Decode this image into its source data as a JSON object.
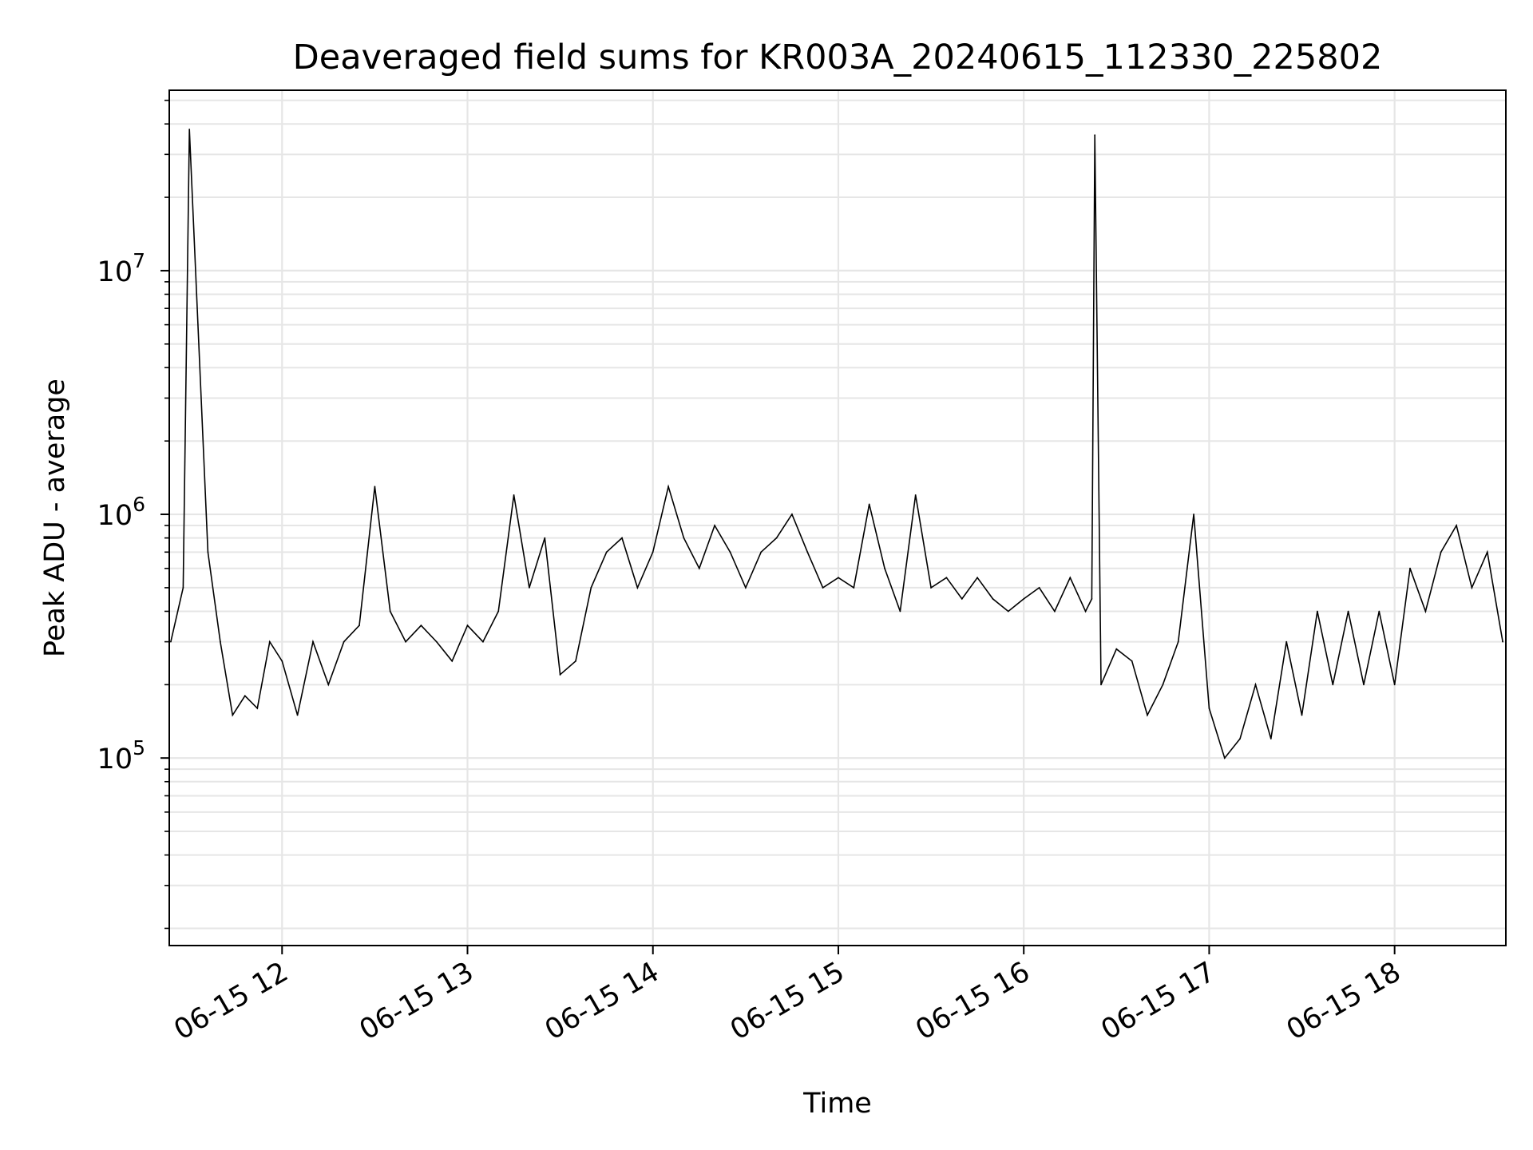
{
  "chart_data": {
    "type": "line",
    "title": "Deaveraged field sums for KR003A_20240615_112330_225802",
    "xlabel": "Time",
    "ylabel": "Peak ADU - average",
    "yscale": "log",
    "ylim": [
      17000,
      55000000
    ],
    "xlim": [
      "2024-06-15 11:23:30",
      "2024-06-15 18:36:00"
    ],
    "grid": "both",
    "line_color": "#000000",
    "grid_color": "#e6e6e6",
    "x_ticks": [
      {
        "value": "2024-06-15 12:00",
        "label": "06-15 12"
      },
      {
        "value": "2024-06-15 13:00",
        "label": "06-15 13"
      },
      {
        "value": "2024-06-15 14:00",
        "label": "06-15 14"
      },
      {
        "value": "2024-06-15 15:00",
        "label": "06-15 15"
      },
      {
        "value": "2024-06-15 16:00",
        "label": "06-15 16"
      },
      {
        "value": "2024-06-15 17:00",
        "label": "06-15 17"
      },
      {
        "value": "2024-06-15 18:00",
        "label": "06-15 18"
      }
    ],
    "y_ticks": [
      {
        "value": 100000,
        "base": "10",
        "exp": "5"
      },
      {
        "value": 1000000,
        "base": "10",
        "exp": "6"
      },
      {
        "value": 10000000,
        "base": "10",
        "exp": "7"
      }
    ],
    "series": [
      {
        "x": [
          "2024-06-15 11:24",
          "2024-06-15 11:28",
          "2024-06-15 11:30",
          "2024-06-15 11:36",
          "2024-06-15 11:40",
          "2024-06-15 11:44",
          "2024-06-15 11:48",
          "2024-06-15 11:52",
          "2024-06-15 11:56",
          "2024-06-15 12:00",
          "2024-06-15 12:05",
          "2024-06-15 12:10",
          "2024-06-15 12:15",
          "2024-06-15 12:20",
          "2024-06-15 12:25",
          "2024-06-15 12:30",
          "2024-06-15 12:35",
          "2024-06-15 12:40",
          "2024-06-15 12:45",
          "2024-06-15 12:50",
          "2024-06-15 12:55",
          "2024-06-15 13:00",
          "2024-06-15 13:05",
          "2024-06-15 13:10",
          "2024-06-15 13:15",
          "2024-06-15 13:20",
          "2024-06-15 13:25",
          "2024-06-15 13:30",
          "2024-06-15 13:35",
          "2024-06-15 13:40",
          "2024-06-15 13:45",
          "2024-06-15 13:50",
          "2024-06-15 13:55",
          "2024-06-15 14:00",
          "2024-06-15 14:05",
          "2024-06-15 14:10",
          "2024-06-15 14:15",
          "2024-06-15 14:20",
          "2024-06-15 14:25",
          "2024-06-15 14:30",
          "2024-06-15 14:35",
          "2024-06-15 14:40",
          "2024-06-15 14:45",
          "2024-06-15 14:50",
          "2024-06-15 14:55",
          "2024-06-15 15:00",
          "2024-06-15 15:05",
          "2024-06-15 15:10",
          "2024-06-15 15:15",
          "2024-06-15 15:20",
          "2024-06-15 15:25",
          "2024-06-15 15:30",
          "2024-06-15 15:35",
          "2024-06-15 15:40",
          "2024-06-15 15:45",
          "2024-06-15 15:50",
          "2024-06-15 15:55",
          "2024-06-15 16:00",
          "2024-06-15 16:05",
          "2024-06-15 16:10",
          "2024-06-15 16:15",
          "2024-06-15 16:20",
          "2024-06-15 16:22",
          "2024-06-15 16:23",
          "2024-06-15 16:25",
          "2024-06-15 16:30",
          "2024-06-15 16:35",
          "2024-06-15 16:40",
          "2024-06-15 16:45",
          "2024-06-15 16:50",
          "2024-06-15 16:55",
          "2024-06-15 17:00",
          "2024-06-15 17:05",
          "2024-06-15 17:10",
          "2024-06-15 17:15",
          "2024-06-15 17:20",
          "2024-06-15 17:25",
          "2024-06-15 17:30",
          "2024-06-15 17:35",
          "2024-06-15 17:40",
          "2024-06-15 17:45",
          "2024-06-15 17:50",
          "2024-06-15 17:55",
          "2024-06-15 18:00",
          "2024-06-15 18:05",
          "2024-06-15 18:10",
          "2024-06-15 18:15",
          "2024-06-15 18:20",
          "2024-06-15 18:25",
          "2024-06-15 18:30",
          "2024-06-15 18:35"
        ],
        "y": [
          300000,
          500000,
          38000000,
          700000,
          300000,
          150000,
          180000,
          160000,
          300000,
          250000,
          150000,
          300000,
          200000,
          300000,
          350000,
          1300000,
          400000,
          300000,
          350000,
          300000,
          250000,
          350000,
          300000,
          400000,
          1200000,
          500000,
          800000,
          220000,
          250000,
          500000,
          700000,
          800000,
          500000,
          700000,
          1300000,
          800000,
          600000,
          900000,
          700000,
          500000,
          700000,
          800000,
          1000000,
          700000,
          500000,
          550000,
          500000,
          1100000,
          600000,
          400000,
          1200000,
          500000,
          550000,
          450000,
          550000,
          450000,
          400000,
          450000,
          500000,
          400000,
          550000,
          400000,
          450000,
          36000000,
          200000,
          280000,
          250000,
          150000,
          200000,
          300000,
          1000000,
          160000,
          100000,
          120000,
          200000,
          120000,
          300000,
          150000,
          400000,
          200000,
          400000,
          200000,
          400000,
          200000,
          600000,
          400000,
          700000,
          900000,
          500000,
          700000,
          300000
        ]
      }
    ]
  }
}
